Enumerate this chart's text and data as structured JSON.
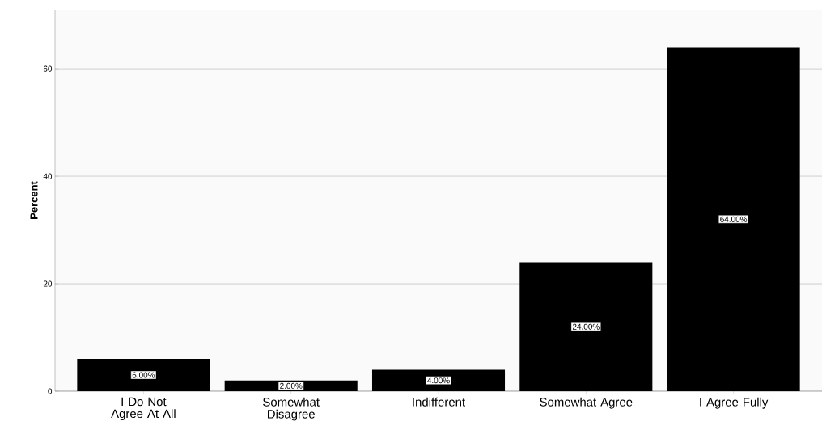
{
  "chart_data": {
    "type": "bar",
    "ylabel": "Percent",
    "categories": [
      "I Do Not Agree At All",
      "Somewhat Disagree",
      "Indifferent",
      "Somewhat Agree",
      "I Agree Fully"
    ],
    "values": [
      6,
      2,
      4,
      24,
      64
    ],
    "value_labels": [
      "6.00%",
      "2.00%",
      "4.00%",
      "24.00%",
      "64.00%"
    ],
    "color": "#000000",
    "ylim": [
      0,
      71
    ],
    "yticks": [
      0,
      20,
      40,
      60
    ],
    "grid": "y"
  }
}
